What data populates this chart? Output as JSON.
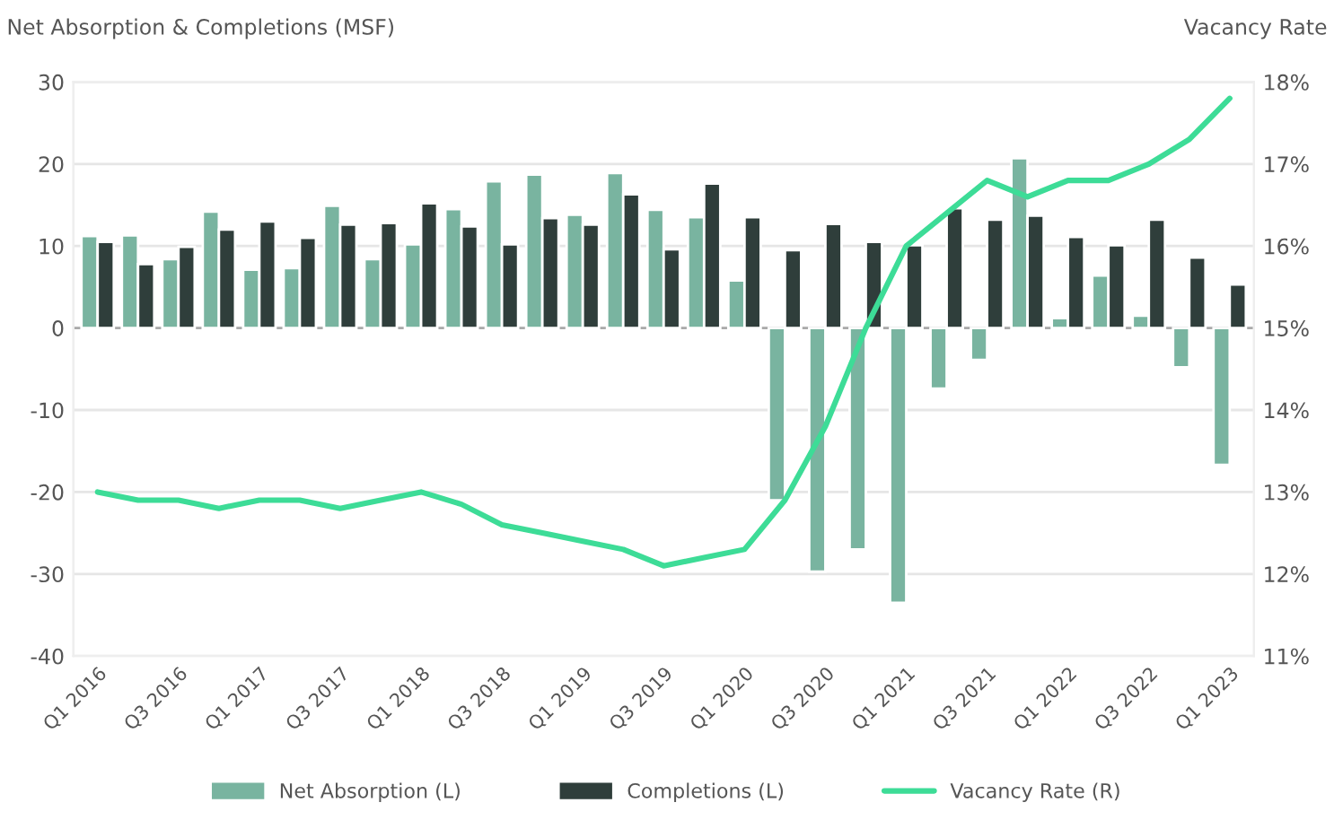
{
  "chart_data": {
    "type": "bar",
    "ylabel": "Net Absorption & Completions (MSF)",
    "y2label": "Vacancy Rate",
    "categories": [
      "Q1 2016",
      null,
      "Q3 2016",
      null,
      "Q1 2017",
      null,
      "Q3 2017",
      null,
      "Q1 2018",
      null,
      "Q3 2018",
      null,
      "Q1 2019",
      null,
      "Q3 2019",
      null,
      "Q1 2020",
      null,
      "Q3 2020",
      null,
      "Q1 2021",
      null,
      "Q3 2021",
      null,
      "Q1 2022",
      null,
      "Q3 2022",
      null,
      "Q1 2023"
    ],
    "series": [
      {
        "name": "Net Absorption (L)",
        "color": "#79b4a0",
        "values": [
          11.2,
          11.3,
          8.4,
          14.2,
          7.1,
          7.3,
          14.9,
          8.4,
          10.2,
          14.5,
          17.9,
          18.7,
          13.8,
          18.9,
          14.4,
          13.5,
          5.8,
          -21,
          -29.7,
          -27,
          -33.5,
          -7.4,
          -3.9,
          20.7,
          1.2,
          6.4,
          1.5,
          -4.8,
          -16.7
        ]
      },
      {
        "name": "Completions (L)",
        "color": "#2f3e3b",
        "values": [
          10.5,
          7.8,
          9.9,
          12.0,
          13.0,
          11.0,
          12.6,
          12.8,
          15.2,
          12.4,
          10.2,
          13.4,
          12.6,
          16.3,
          9.6,
          17.6,
          13.5,
          9.5,
          12.7,
          10.5,
          10.1,
          14.6,
          13.2,
          13.7,
          11.1,
          10.1,
          13.2,
          8.6,
          5.3
        ]
      },
      {
        "name": "Vacancy Rate (R)",
        "type": "line",
        "axis": "y2",
        "color": "#3ddc97",
        "values": [
          13.0,
          12.9,
          12.9,
          12.8,
          12.9,
          12.9,
          12.8,
          12.9,
          13.0,
          12.85,
          12.6,
          12.5,
          12.4,
          12.3,
          12.1,
          12.2,
          12.3,
          12.9,
          13.8,
          15.0,
          16.0,
          16.4,
          16.8,
          16.6,
          16.8,
          16.8,
          17.0,
          17.3,
          17.8
        ]
      }
    ],
    "ylim": [
      -40,
      30
    ],
    "yticks": [
      -40,
      -30,
      -20,
      -10,
      0,
      10,
      20,
      30
    ],
    "y2lim": [
      11,
      18
    ],
    "y2ticks": [
      {
        "value": 11,
        "label": "11%"
      },
      {
        "value": 12,
        "label": "12%"
      },
      {
        "value": 13,
        "label": "13%"
      },
      {
        "value": 14,
        "label": "14%"
      },
      {
        "value": 15,
        "label": "15%"
      },
      {
        "value": 16,
        "label": "16%"
      },
      {
        "value": 17,
        "label": "17%"
      },
      {
        "value": 18,
        "label": "18%"
      }
    ],
    "grid": "y",
    "legend": "bottom",
    "marker": "none",
    "line_style": "solid"
  }
}
